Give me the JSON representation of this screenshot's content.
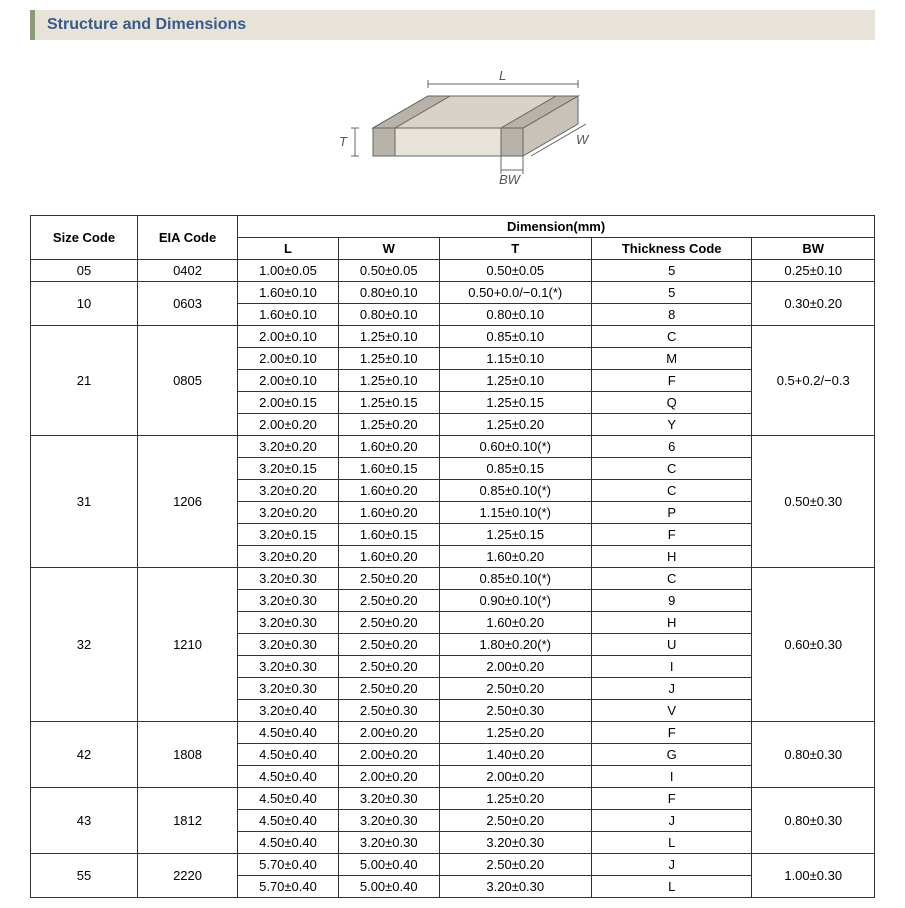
{
  "title": "Structure and Dimensions",
  "diagram": {
    "labels": {
      "L": "L",
      "W": "W",
      "T": "T",
      "BW": "BW"
    },
    "stroke": "#666666",
    "fill_top": "#d8d2c8",
    "fill_side": "#c8c2b8",
    "fill_front": "#e8e3d9",
    "term_fill": "#b8b2a8"
  },
  "table": {
    "headers": {
      "size": "Size Code",
      "eia": "EIA Code",
      "dim": "Dimension(mm)",
      "L": "L",
      "W": "W",
      "T": "T",
      "thick": "Thickness  Code",
      "BW": "BW"
    },
    "groups": [
      {
        "size": "05",
        "eia": "0402",
        "bw": "0.25±0.10",
        "rows": [
          {
            "L": "1.00±0.05",
            "W": "0.50±0.05",
            "T": "0.50±0.05",
            "tc": "5"
          }
        ]
      },
      {
        "size": "10",
        "eia": "0603",
        "bw": "0.30±0.20",
        "rows": [
          {
            "L": "1.60±0.10",
            "W": "0.80±0.10",
            "T": "0.50+0.0/−0.1(*)",
            "tc": "5"
          },
          {
            "L": "1.60±0.10",
            "W": "0.80±0.10",
            "T": "0.80±0.10",
            "tc": "8"
          }
        ]
      },
      {
        "size": "21",
        "eia": "0805",
        "bw": "0.5+0.2/−0.3",
        "rows": [
          {
            "L": "2.00±0.10",
            "W": "1.25±0.10",
            "T": "0.85±0.10",
            "tc": "C"
          },
          {
            "L": "2.00±0.10",
            "W": "1.25±0.10",
            "T": "1.15±0.10",
            "tc": "M"
          },
          {
            "L": "2.00±0.10",
            "W": "1.25±0.10",
            "T": "1.25±0.10",
            "tc": "F"
          },
          {
            "L": "2.00±0.15",
            "W": "1.25±0.15",
            "T": "1.25±0.15",
            "tc": "Q"
          },
          {
            "L": "2.00±0.20",
            "W": "1.25±0.20",
            "T": "1.25±0.20",
            "tc": "Y"
          }
        ]
      },
      {
        "size": "31",
        "eia": "1206",
        "bw": "0.50±0.30",
        "rows": [
          {
            "L": "3.20±0.20",
            "W": "1.60±0.20",
            "T": "0.60±0.10(*)",
            "tc": "6"
          },
          {
            "L": "3.20±0.15",
            "W": "1.60±0.15",
            "T": "0.85±0.15",
            "tc": "C"
          },
          {
            "L": "3.20±0.20",
            "W": "1.60±0.20",
            "T": "0.85±0.10(*)",
            "tc": "C"
          },
          {
            "L": "3.20±0.20",
            "W": "1.60±0.20",
            "T": "1.15±0.10(*)",
            "tc": "P"
          },
          {
            "L": "3.20±0.15",
            "W": "1.60±0.15",
            "T": "1.25±0.15",
            "tc": "F"
          },
          {
            "L": "3.20±0.20",
            "W": "1.60±0.20",
            "T": "1.60±0.20",
            "tc": "H"
          }
        ]
      },
      {
        "size": "32",
        "eia": "1210",
        "bw": "0.60±0.30",
        "rows": [
          {
            "L": "3.20±0.30",
            "W": "2.50±0.20",
            "T": "0.85±0.10(*)",
            "tc": "C"
          },
          {
            "L": "3.20±0.30",
            "W": "2.50±0.20",
            "T": "0.90±0.10(*)",
            "tc": "9"
          },
          {
            "L": "3.20±0.30",
            "W": "2.50±0.20",
            "T": "1.60±0.20",
            "tc": "H"
          },
          {
            "L": "3.20±0.30",
            "W": "2.50±0.20",
            "T": "1.80±0.20(*)",
            "tc": "U"
          },
          {
            "L": "3.20±0.30",
            "W": "2.50±0.20",
            "T": "2.00±0.20",
            "tc": "I"
          },
          {
            "L": "3.20±0.30",
            "W": "2.50±0.20",
            "T": "2.50±0.20",
            "tc": "J"
          },
          {
            "L": "3.20±0.40",
            "W": "2.50±0.30",
            "T": "2.50±0.30",
            "tc": "V"
          }
        ]
      },
      {
        "size": "42",
        "eia": "1808",
        "bw": "0.80±0.30",
        "rows": [
          {
            "L": "4.50±0.40",
            "W": "2.00±0.20",
            "T": "1.25±0.20",
            "tc": "F"
          },
          {
            "L": "4.50±0.40",
            "W": "2.00±0.20",
            "T": "1.40±0.20",
            "tc": "G"
          },
          {
            "L": "4.50±0.40",
            "W": "2.00±0.20",
            "T": "2.00±0.20",
            "tc": "I"
          }
        ]
      },
      {
        "size": "43",
        "eia": "1812",
        "bw": "0.80±0.30",
        "rows": [
          {
            "L": "4.50±0.40",
            "W": "3.20±0.30",
            "T": "1.25±0.20",
            "tc": "F"
          },
          {
            "L": "4.50±0.40",
            "W": "3.20±0.30",
            "T": "2.50±0.20",
            "tc": "J"
          },
          {
            "L": "4.50±0.40",
            "W": "3.20±0.30",
            "T": "3.20±0.30",
            "tc": "L"
          }
        ]
      },
      {
        "size": "55",
        "eia": "2220",
        "bw": "1.00±0.30",
        "rows": [
          {
            "L": "5.70±0.40",
            "W": "5.00±0.40",
            "T": "2.50±0.20",
            "tc": "J"
          },
          {
            "L": "5.70±0.40",
            "W": "5.00±0.40",
            "T": "3.20±0.30",
            "tc": "L"
          }
        ]
      }
    ]
  }
}
